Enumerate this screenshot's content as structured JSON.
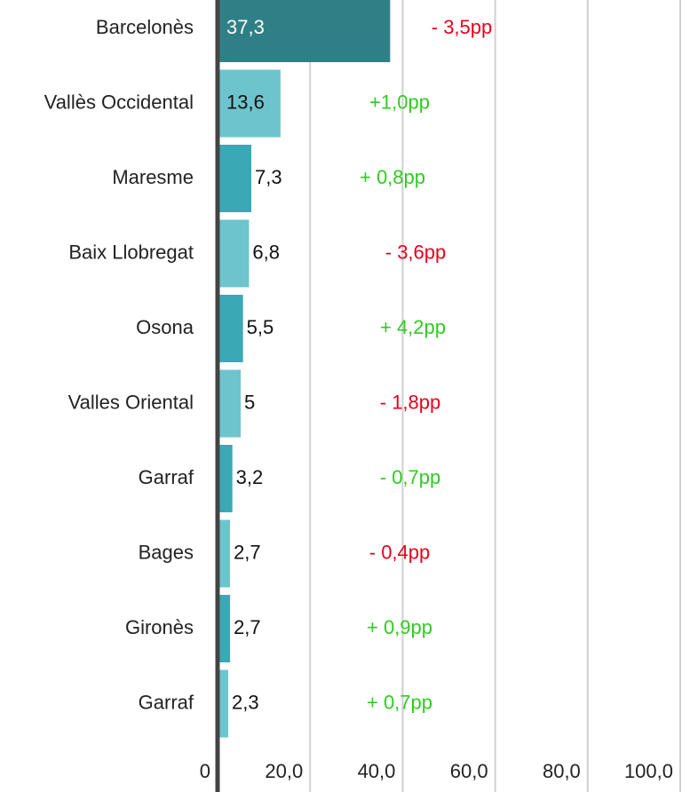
{
  "chart_data": {
    "type": "hbar",
    "categories": [
      "Barcelonès",
      "Vallès Occidental",
      "Maresme",
      "Baix Llobregat",
      "Osona",
      "Valles Oriental",
      "Garraf",
      "Bages",
      "Gironès",
      "Garraf"
    ],
    "values": [
      37.3,
      13.6,
      7.3,
      6.8,
      5.5,
      5,
      3.2,
      2.7,
      2.7,
      2.3
    ],
    "value_labels": [
      "37,3",
      "13,6",
      "7,3",
      "6,8",
      "5,5",
      "5",
      "3,2",
      "2,7",
      "2,7",
      "2,3"
    ],
    "colors": [
      "#2f7f87",
      "#6ec4cc",
      "#3aa9b5",
      "#6ec4cc",
      "#3aa9b5",
      "#6ec4cc",
      "#3aa9b5",
      "#6ec4cc",
      "#3aa9b5",
      "#6ec4cc"
    ],
    "annotations": [
      {
        "text": "- 3,5pp",
        "color": "#e8001c"
      },
      {
        "text": "+1,0pp",
        "color": "#2fcc1f"
      },
      {
        "text": "+ 0,8pp",
        "color": "#2fcc1f"
      },
      {
        "text": "- 3,6pp",
        "color": "#e8001c"
      },
      {
        "text": "+ 4,2pp",
        "color": "#2fcc1f"
      },
      {
        "text": "- 1,8pp",
        "color": "#e8001c"
      },
      {
        "text": "- 0,7pp",
        "color": "#2fcc1f"
      },
      {
        "text": "- 0,4pp",
        "color": "#e8001c"
      },
      {
        "text": "+ 0,9pp",
        "color": "#2fcc1f"
      },
      {
        "text": "+ 0,7pp",
        "color": "#2fcc1f"
      }
    ],
    "xlim": [
      0,
      100
    ],
    "xticks": [
      0,
      {
        "value": 20,
        "label": "20,0"
      },
      {
        "value": 40,
        "label": "40,0"
      },
      {
        "value": 60,
        "label": "60,0"
      },
      {
        "value": 80,
        "label": "80,0"
      },
      {
        "value": 100,
        "label": "100,0"
      }
    ],
    "grid": true
  }
}
